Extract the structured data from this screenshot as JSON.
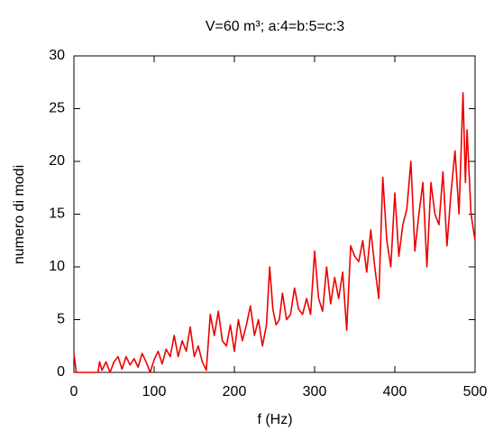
{
  "chart_data": {
    "type": "line",
    "title": "V=60 m³; a:4=b:5=c:3",
    "xlabel": "f (Hz)",
    "ylabel": "numero di modi",
    "x": [
      0,
      3,
      10,
      20,
      30,
      32,
      35,
      40,
      45,
      50,
      55,
      60,
      65,
      70,
      75,
      80,
      85,
      90,
      95,
      100,
      105,
      110,
      115,
      120,
      125,
      130,
      135,
      140,
      145,
      150,
      155,
      160,
      165,
      170,
      175,
      180,
      185,
      190,
      195,
      200,
      205,
      210,
      215,
      220,
      225,
      230,
      235,
      240,
      244,
      248,
      252,
      256,
      260,
      265,
      270,
      275,
      280,
      285,
      290,
      295,
      300,
      305,
      310,
      315,
      320,
      325,
      330,
      335,
      340,
      345,
      350,
      355,
      360,
      365,
      370,
      375,
      380,
      385,
      390,
      395,
      400,
      405,
      410,
      415,
      420,
      425,
      430,
      435,
      440,
      445,
      450,
      455,
      460,
      465,
      470,
      475,
      480,
      485,
      488,
      490,
      495,
      500
    ],
    "series": [
      {
        "name": "numero di modi",
        "color": "#ee0000",
        "values": [
          1.8,
          0,
          0,
          0,
          0,
          1,
          0.2,
          1,
          0,
          1,
          1.5,
          0.3,
          1.5,
          0.7,
          1.3,
          0.5,
          1.8,
          1,
          0,
          1.2,
          2,
          0.8,
          2.2,
          1.5,
          3.5,
          1.5,
          3,
          2,
          4.3,
          1.5,
          2.5,
          1,
          0.2,
          5.5,
          3.5,
          5.8,
          3,
          2.5,
          4.5,
          2,
          5,
          3,
          4.5,
          6.3,
          3.5,
          5,
          2.5,
          4.5,
          10,
          6,
          4.5,
          5,
          7.5,
          5,
          5.5,
          8,
          6,
          5.5,
          7,
          5.5,
          11.5,
          7,
          5.8,
          10,
          6.5,
          9,
          7,
          9.5,
          4,
          12,
          11,
          10.5,
          12.5,
          9.5,
          13.5,
          10,
          7,
          18.5,
          12.5,
          10,
          17,
          11,
          14,
          15.5,
          20,
          11.5,
          15,
          18,
          10,
          18,
          15,
          14,
          19,
          12,
          17,
          21,
          15,
          26.5,
          18,
          23,
          15,
          12.5
        ]
      }
    ],
    "xlim": [
      0,
      500
    ],
    "xticks": [
      0,
      100,
      200,
      300,
      400,
      500
    ],
    "ylim": [
      0,
      30
    ],
    "yticks": [
      0,
      5,
      10,
      15,
      20,
      25,
      30
    ]
  }
}
